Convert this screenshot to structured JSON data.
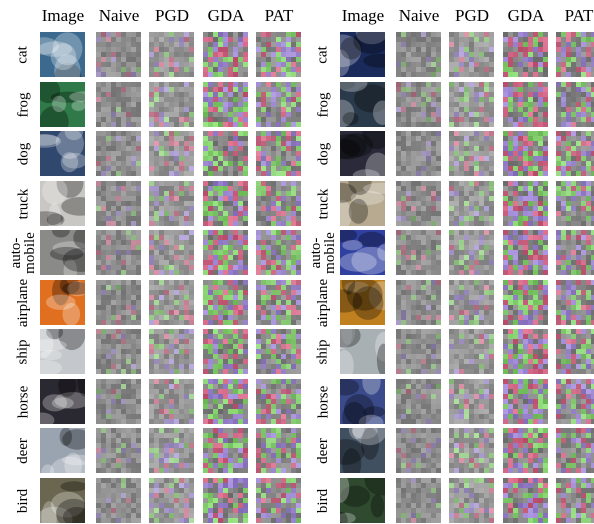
{
  "columns": [
    "Image",
    "Naive",
    "PGD",
    "GDA",
    "PAT"
  ],
  "rows": [
    {
      "label": "cat"
    },
    {
      "label": "frog"
    },
    {
      "label": "dog"
    },
    {
      "label": "truck"
    },
    {
      "label": "auto-\nmobile"
    },
    {
      "label": "airplane"
    },
    {
      "label": "ship"
    },
    {
      "label": "horse"
    },
    {
      "label": "deer"
    },
    {
      "label": "bird"
    }
  ],
  "panels": [
    {
      "id": "left",
      "image_colors": [
        "#3b6a8e",
        "#2f7a48",
        "#30486e",
        "#c9c7c3",
        "#8a8a88",
        "#e07020",
        "#c4c8cc",
        "#2a2830",
        "#9aa4b0",
        "#6a6650"
      ]
    },
    {
      "id": "right",
      "image_colors": [
        "#1a2a5a",
        "#2a3a4a",
        "#2a2a3a",
        "#b8aa90",
        "#3040a0",
        "#c08020",
        "#a8b0b4",
        "#3a4a8a",
        "#405060",
        "#304a30"
      ]
    }
  ]
}
